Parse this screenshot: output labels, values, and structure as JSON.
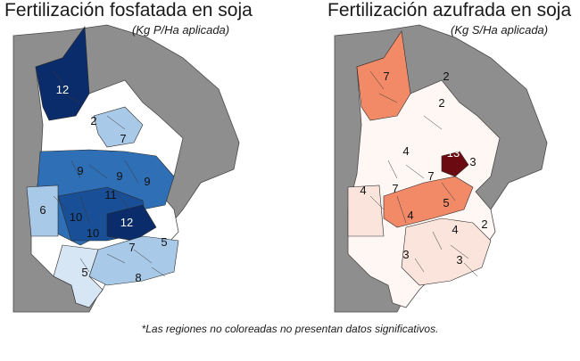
{
  "left_map": {
    "title": "Fertilización fosfatada en soja",
    "unit": "(Kg P/Ha aplicada)",
    "region_labels": [
      "12",
      "2",
      "7",
      "9",
      "9",
      "9",
      "11",
      "6",
      "10",
      "12",
      "10",
      "5",
      "7",
      "5",
      "8"
    ],
    "colors": {
      "neighbor": "#8e8e8e",
      "border": "#4a4a4a",
      "uncolored": "#ffffff",
      "shades": [
        "#d7e6f5",
        "#a9c9e8",
        "#5c9bd1",
        "#2f6fb6",
        "#0b2c6a"
      ]
    }
  },
  "right_map": {
    "title": "Fertilización azufrada en soja",
    "unit": "(Kg S/Ha aplicada)",
    "region_labels": [
      "7",
      "2",
      "2",
      "13",
      "4",
      "3",
      "4",
      "7",
      "7",
      "5",
      "4",
      "2",
      "4",
      "3",
      "3"
    ],
    "colors": {
      "neighbor": "#8e8e8e",
      "border": "#4a4a4a",
      "uncolored": "#ffffff",
      "shades": [
        "#fbe4dc",
        "#f8c8b6",
        "#f28a68",
        "#c44a2c",
        "#6b0a10"
      ]
    }
  },
  "footnote": "*Las regiones no coloreadas no presentan datos significativos."
}
